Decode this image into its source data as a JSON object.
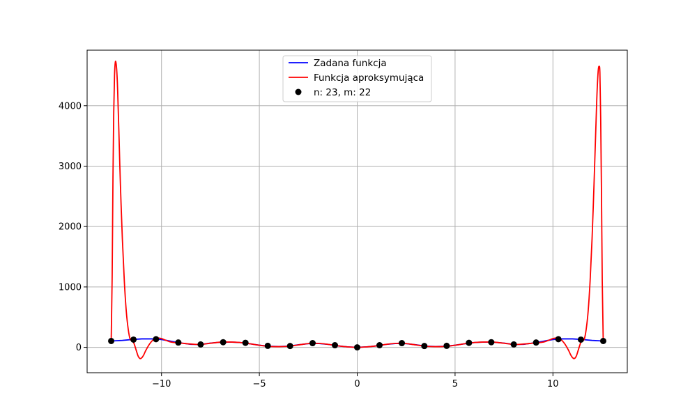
{
  "chart_data": {
    "type": "line",
    "grid": true,
    "legend_placement": "upper-center",
    "xlim": [
      -13.8,
      13.8
    ],
    "ylim": [
      -420,
      4920
    ],
    "x_ticks": [
      -10,
      -5,
      0,
      5,
      10
    ],
    "x_tick_labels": [
      "−10",
      "−5",
      "0",
      "5",
      "10"
    ],
    "y_ticks": [
      0,
      1000,
      2000,
      3000,
      4000
    ],
    "y_tick_labels": [
      "0",
      "1000",
      "2000",
      "3000",
      "4000"
    ],
    "colors": {
      "given": "#0000ff",
      "approx": "#ff0000",
      "nodes": "#000000",
      "grid": "#b0b0b0"
    },
    "series": [
      {
        "name": "Zadana funkcja",
        "kind": "line",
        "x": [
          -12.57,
          -12.0,
          -11.5,
          -11.0,
          -10.5,
          -10.0,
          -9.5,
          -9.0,
          -8.5,
          -8.0,
          -7.5,
          -7.0,
          -6.5,
          -6.0,
          -5.5,
          -5.0,
          -4.5,
          -4.0,
          -3.5,
          -3.0,
          -2.5,
          -2.0,
          -1.5,
          -1.0,
          -0.5,
          0.0,
          0.5,
          1.0,
          1.5,
          2.0,
          2.5,
          3.0,
          3.5,
          4.0,
          4.5,
          5.0,
          5.5,
          6.0,
          6.5,
          7.0,
          7.5,
          8.0,
          8.5,
          9.0,
          9.5,
          10.0,
          10.5,
          11.0,
          11.5,
          12.0,
          12.57
        ],
        "y": [
          105,
          115,
          130,
          140,
          140,
          130,
          100,
          72,
          50,
          48,
          70,
          85,
          88,
          80,
          60,
          35,
          18,
          14,
          20,
          42,
          62,
          65,
          50,
          25,
          8,
          0,
          8,
          25,
          50,
          65,
          62,
          42,
          20,
          14,
          18,
          35,
          60,
          80,
          88,
          85,
          70,
          48,
          50,
          72,
          100,
          130,
          140,
          140,
          130,
          115,
          105
        ]
      },
      {
        "name": "Funkcja aproksymująca",
        "kind": "line",
        "x": [
          -12.57,
          -12.52,
          -12.48,
          -12.44,
          -12.4,
          -12.36,
          -12.32,
          -12.28,
          -12.24,
          -12.18,
          -12.1,
          -12.0,
          -11.9,
          -11.8,
          -11.7,
          -11.6,
          -11.5,
          -11.4,
          -11.3,
          -11.2,
          -11.1,
          -11.0,
          -10.9,
          -10.8,
          -10.6,
          -10.4,
          -10.2,
          -10.0,
          -9.8,
          -9.6,
          -9.4,
          -9.2,
          -9.0,
          -8.5,
          -8.0,
          -7.5,
          -7.0,
          -6.5,
          -6.0,
          -5.5,
          -5.0,
          -4.5,
          -4.0,
          -3.5,
          -3.0,
          -2.5,
          -2.0,
          -1.5,
          -1.0,
          -0.5,
          0.0,
          0.5,
          1.0,
          1.5,
          2.0,
          2.5,
          3.0,
          3.5,
          4.0,
          4.5,
          5.0,
          5.5,
          6.0,
          6.5,
          7.0,
          7.5,
          8.0,
          8.5,
          9.0,
          9.2,
          9.4,
          9.6,
          9.8,
          10.0,
          10.2,
          10.4,
          10.6,
          10.8,
          10.9,
          11.0,
          11.1,
          11.2,
          11.3,
          11.4,
          11.5,
          11.6,
          11.7,
          11.8,
          11.9,
          12.0,
          12.1,
          12.18,
          12.24,
          12.28,
          12.32,
          12.36,
          12.4,
          12.44,
          12.48,
          12.52,
          12.57
        ],
        "y": [
          105,
          1200,
          2800,
          3900,
          4500,
          4720,
          4700,
          4550,
          4250,
          3600,
          2700,
          1800,
          1100,
          600,
          300,
          135,
          125,
          60,
          -40,
          -140,
          -185,
          -170,
          -120,
          -50,
          60,
          130,
          155,
          145,
          120,
          95,
          82,
          75,
          70,
          55,
          48,
          68,
          85,
          88,
          80,
          60,
          35,
          15,
          12,
          18,
          40,
          62,
          66,
          50,
          25,
          8,
          0,
          8,
          25,
          50,
          66,
          62,
          40,
          18,
          12,
          15,
          35,
          60,
          80,
          88,
          85,
          68,
          48,
          55,
          70,
          75,
          82,
          95,
          120,
          145,
          155,
          130,
          60,
          -50,
          -120,
          -170,
          -185,
          -140,
          -40,
          60,
          125,
          135,
          300,
          600,
          1100,
          1800,
          2700,
          3500,
          4100,
          4400,
          4600,
          4650,
          4550,
          3800,
          2600,
          1100,
          105
        ]
      },
      {
        "name": "n: 23, m: 22",
        "kind": "scatter",
        "x": [
          -12.57,
          -11.43,
          -10.28,
          -9.14,
          -8.0,
          -6.85,
          -5.71,
          -4.57,
          -3.43,
          -2.28,
          -1.14,
          0.0,
          1.14,
          2.28,
          3.43,
          4.57,
          5.71,
          6.85,
          8.0,
          9.14,
          10.28,
          11.43,
          12.57
        ],
        "y": [
          105,
          128,
          135,
          80,
          48,
          85,
          75,
          25,
          22,
          70,
          35,
          0,
          35,
          70,
          22,
          25,
          75,
          85,
          48,
          80,
          135,
          128,
          105
        ]
      }
    ]
  }
}
